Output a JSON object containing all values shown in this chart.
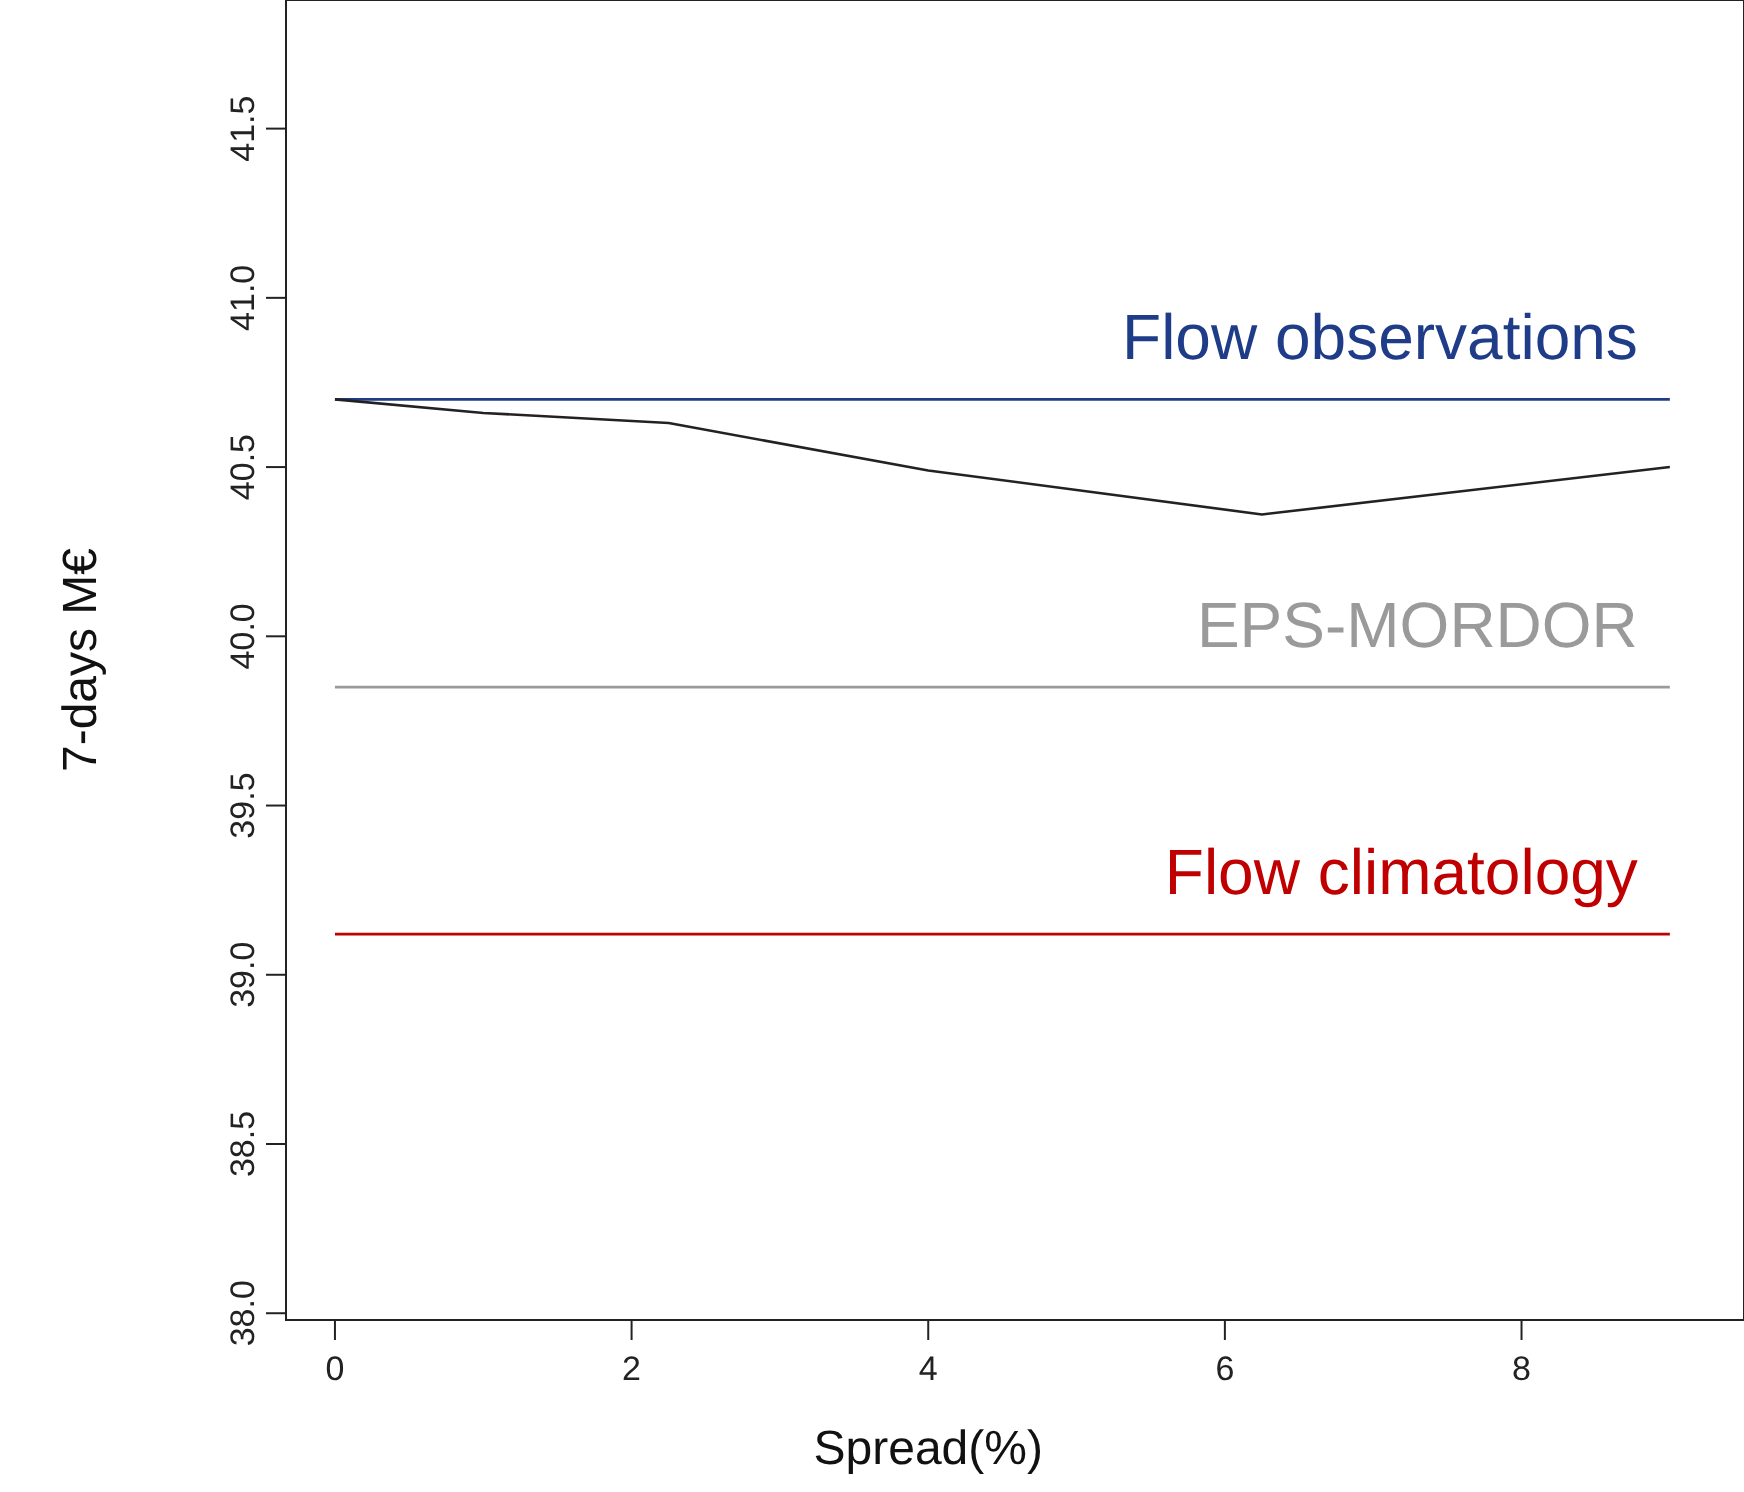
{
  "chart_data": {
    "type": "line",
    "xlabel": "Spread(%)",
    "ylabel": "7-days M€",
    "xlim": [
      -0.33,
      9.5
    ],
    "ylim": [
      37.98,
      41.88
    ],
    "xticks": [
      0,
      2,
      4,
      6,
      8
    ],
    "yticks": [
      {
        "value": 38,
        "label": "38.0"
      },
      38.5,
      {
        "value": 39,
        "label": "39.0"
      },
      39.5,
      {
        "value": 40,
        "label": "40.0"
      },
      40.5,
      {
        "value": 41,
        "label": "41.0"
      },
      41.5
    ],
    "grid": false,
    "series": [
      {
        "name": "Flow observations",
        "color": "#1f3c88",
        "x": [
          0,
          9
        ],
        "values": [
          40.7,
          40.7
        ]
      },
      {
        "x": [
          0,
          1,
          2.25,
          4,
          6.25,
          9
        ],
        "color": "#222222",
        "values": [
          40.7,
          40.66,
          40.63,
          40.49,
          40.36,
          40.5
        ]
      },
      {
        "name": "EPS-MORDOR",
        "color": "#9a9a9a",
        "x": [
          0,
          9
        ],
        "values": [
          39.85,
          39.85
        ]
      },
      {
        "name": "Flow climatology",
        "color": "#c00000",
        "x": [
          0,
          9
        ],
        "values": [
          39.12,
          39.12
        ]
      }
    ]
  }
}
